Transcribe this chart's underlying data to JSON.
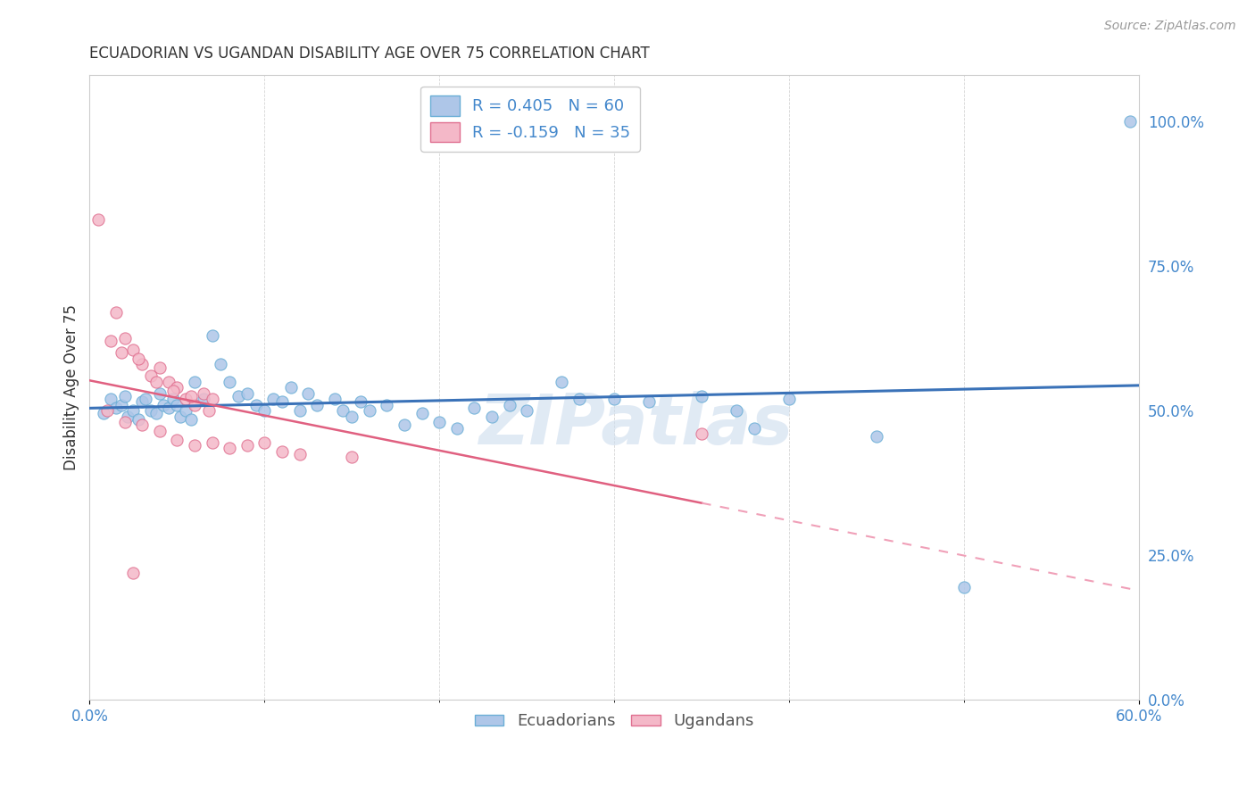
{
  "title": "ECUADORIAN VS UGANDAN DISABILITY AGE OVER 75 CORRELATION CHART",
  "source": "Source: ZipAtlas.com",
  "ylabel": "Disability Age Over 75",
  "ytick_values": [
    0.0,
    25.0,
    50.0,
    75.0,
    100.0
  ],
  "xmin": 0.0,
  "xmax": 60.0,
  "ymin": 0.0,
  "ymax": 108.0,
  "ecuador_R": 0.405,
  "ecuador_N": 60,
  "uganda_R": -0.159,
  "uganda_N": 35,
  "ecuador_color": "#aec6e8",
  "ecuador_edge": "#6aaed6",
  "uganda_color": "#f4b8c8",
  "uganda_edge": "#e07090",
  "ecuador_line_color": "#3a72b8",
  "uganda_solid_color": "#e06080",
  "uganda_dash_color": "#f0a0b8",
  "legend_label1": "R = 0.405   N = 60",
  "legend_label2": "R = -0.159   N = 35",
  "watermark": "ZIPatlas",
  "background_color": "#ffffff",
  "grid_color": "#cccccc",
  "title_color": "#333333",
  "axis_label_color": "#4488cc",
  "marker_size": 90,
  "ecuador_scatter": [
    [
      0.8,
      49.5
    ],
    [
      1.2,
      52.0
    ],
    [
      1.5,
      50.5
    ],
    [
      1.8,
      51.0
    ],
    [
      2.0,
      52.5
    ],
    [
      2.2,
      49.0
    ],
    [
      2.5,
      50.0
    ],
    [
      2.8,
      48.5
    ],
    [
      3.0,
      51.5
    ],
    [
      3.2,
      52.0
    ],
    [
      3.5,
      50.0
    ],
    [
      3.8,
      49.5
    ],
    [
      4.0,
      53.0
    ],
    [
      4.2,
      51.0
    ],
    [
      4.5,
      50.5
    ],
    [
      4.8,
      52.0
    ],
    [
      5.0,
      51.0
    ],
    [
      5.2,
      49.0
    ],
    [
      5.5,
      50.0
    ],
    [
      5.8,
      48.5
    ],
    [
      6.0,
      55.0
    ],
    [
      6.5,
      52.0
    ],
    [
      7.0,
      63.0
    ],
    [
      7.5,
      58.0
    ],
    [
      8.0,
      55.0
    ],
    [
      8.5,
      52.5
    ],
    [
      9.0,
      53.0
    ],
    [
      9.5,
      51.0
    ],
    [
      10.0,
      50.0
    ],
    [
      10.5,
      52.0
    ],
    [
      11.0,
      51.5
    ],
    [
      11.5,
      54.0
    ],
    [
      12.0,
      50.0
    ],
    [
      12.5,
      53.0
    ],
    [
      13.0,
      51.0
    ],
    [
      14.0,
      52.0
    ],
    [
      14.5,
      50.0
    ],
    [
      15.0,
      49.0
    ],
    [
      15.5,
      51.5
    ],
    [
      16.0,
      50.0
    ],
    [
      17.0,
      51.0
    ],
    [
      18.0,
      47.5
    ],
    [
      19.0,
      49.5
    ],
    [
      20.0,
      48.0
    ],
    [
      21.0,
      47.0
    ],
    [
      22.0,
      50.5
    ],
    [
      23.0,
      49.0
    ],
    [
      24.0,
      51.0
    ],
    [
      25.0,
      50.0
    ],
    [
      27.0,
      55.0
    ],
    [
      28.0,
      52.0
    ],
    [
      30.0,
      52.0
    ],
    [
      32.0,
      51.5
    ],
    [
      35.0,
      52.5
    ],
    [
      37.0,
      50.0
    ],
    [
      38.0,
      47.0
    ],
    [
      40.0,
      52.0
    ],
    [
      45.0,
      45.5
    ],
    [
      50.0,
      19.5
    ],
    [
      59.5,
      100.0
    ]
  ],
  "uganda_scatter": [
    [
      0.5,
      83.0
    ],
    [
      1.5,
      67.0
    ],
    [
      2.0,
      62.5
    ],
    [
      2.5,
      60.5
    ],
    [
      3.0,
      58.0
    ],
    [
      3.5,
      56.0
    ],
    [
      4.0,
      57.5
    ],
    [
      4.5,
      55.0
    ],
    [
      5.0,
      54.0
    ],
    [
      5.5,
      52.0
    ],
    [
      6.0,
      51.0
    ],
    [
      6.5,
      53.0
    ],
    [
      7.0,
      52.0
    ],
    [
      1.2,
      62.0
    ],
    [
      1.8,
      60.0
    ],
    [
      2.8,
      59.0
    ],
    [
      3.8,
      55.0
    ],
    [
      4.8,
      53.5
    ],
    [
      5.8,
      52.5
    ],
    [
      6.8,
      50.0
    ],
    [
      1.0,
      50.0
    ],
    [
      2.0,
      48.0
    ],
    [
      3.0,
      47.5
    ],
    [
      4.0,
      46.5
    ],
    [
      5.0,
      45.0
    ],
    [
      6.0,
      44.0
    ],
    [
      7.0,
      44.5
    ],
    [
      8.0,
      43.5
    ],
    [
      9.0,
      44.0
    ],
    [
      10.0,
      44.5
    ],
    [
      11.0,
      43.0
    ],
    [
      12.0,
      42.5
    ],
    [
      15.0,
      42.0
    ],
    [
      2.5,
      22.0
    ],
    [
      35.0,
      46.0
    ]
  ]
}
